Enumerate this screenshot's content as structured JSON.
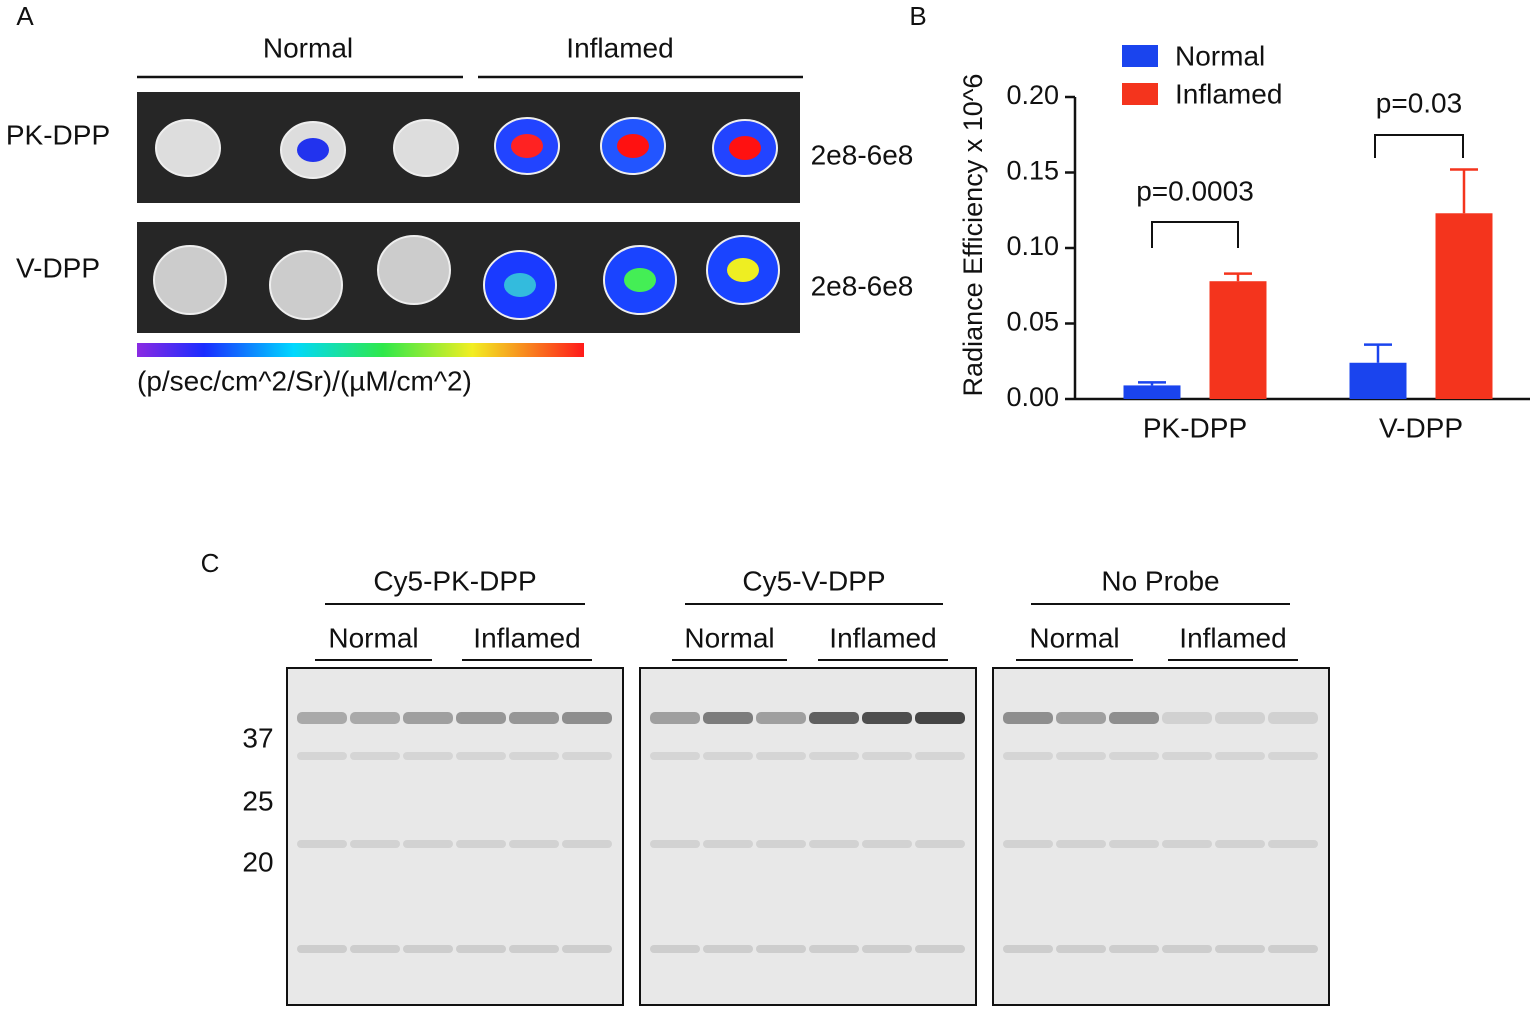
{
  "panel_a": {
    "label": "A",
    "groups": [
      "Normal",
      "Inflamed"
    ],
    "rows": [
      {
        "name": "PK-DPP",
        "range": "2e8-6e8"
      },
      {
        "name": "V-DPP",
        "range": "2e8-6e8"
      }
    ],
    "colorbar_label": "(p/sec/cm^2/Sr)/(µM/cm^2)"
  },
  "chart_data": {
    "type": "bar",
    "panel_label": "B",
    "y_label": "Radiance Efficiency x 10^6",
    "categories": [
      "PK-DPP",
      "V-DPP"
    ],
    "series": [
      {
        "name": "Normal",
        "color": "#1a44ee",
        "values": [
          0.009,
          0.024
        ],
        "errors": [
          0.002,
          0.012
        ]
      },
      {
        "name": "Inflamed",
        "color": "#f4341d",
        "values": [
          0.078,
          0.123
        ],
        "errors": [
          0.005,
          0.029
        ]
      }
    ],
    "ylim": [
      0,
      0.2
    ],
    "yticks": [
      {
        "value": 0,
        "label": "0.00"
      },
      {
        "value": 0.05,
        "label": "0.05"
      },
      {
        "value": 0.1,
        "label": "0.10"
      },
      {
        "value": 0.15,
        "label": "0.15"
      },
      {
        "value": 0.2,
        "label": "0.20"
      }
    ],
    "annotations": [
      "p=0.0003",
      "p=0.03"
    ],
    "legend": "upper left"
  },
  "panel_c": {
    "label": "C",
    "blots": [
      {
        "probe": "Cy5-PK-DPP",
        "groups": [
          "Normal",
          "Inflamed"
        ]
      },
      {
        "probe": "Cy5-V-DPP",
        "groups": [
          "Normal",
          "Inflamed"
        ]
      },
      {
        "probe": "No Probe",
        "groups": [
          "Normal",
          "Inflamed"
        ]
      }
    ],
    "markers": [
      37,
      25,
      20
    ]
  }
}
